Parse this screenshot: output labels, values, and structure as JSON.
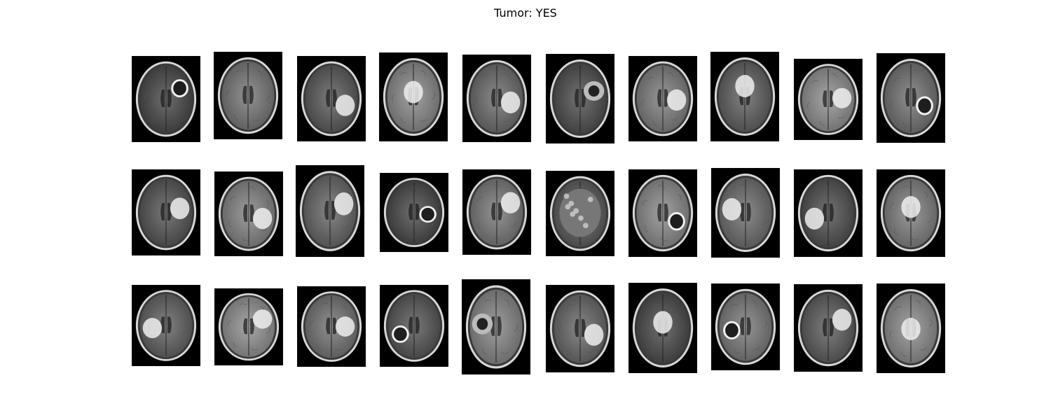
{
  "figure": {
    "title": "Tumor: YES"
  },
  "grid": {
    "rows": 3,
    "cols": 10
  },
  "images": [
    {
      "row": 0,
      "col": 0,
      "lesion": "ring-enhancing",
      "lesion_side": "right"
    },
    {
      "row": 0,
      "col": 1,
      "lesion": "none"
    },
    {
      "row": 0,
      "col": 2,
      "lesion": "bright-mass",
      "lesion_side": "right"
    },
    {
      "row": 0,
      "col": 3,
      "lesion": "bright-mass",
      "lesion_side": "center"
    },
    {
      "row": 0,
      "col": 4,
      "lesion": "bright-mass",
      "lesion_side": "right"
    },
    {
      "row": 0,
      "col": 5,
      "lesion": "cystic",
      "lesion_side": "right"
    },
    {
      "row": 0,
      "col": 6,
      "lesion": "bright-mass",
      "lesion_side": "right"
    },
    {
      "row": 0,
      "col": 7,
      "lesion": "bright-mass",
      "lesion_side": "center"
    },
    {
      "row": 0,
      "col": 8,
      "lesion": "bright-mass",
      "lesion_side": "right"
    },
    {
      "row": 0,
      "col": 9,
      "lesion": "ring-enhancing",
      "lesion_side": "right"
    },
    {
      "row": 1,
      "col": 0,
      "lesion": "bright-mass",
      "lesion_side": "right"
    },
    {
      "row": 1,
      "col": 1,
      "lesion": "bright-mass",
      "lesion_side": "right"
    },
    {
      "row": 1,
      "col": 2,
      "lesion": "bright-mass",
      "lesion_side": "right"
    },
    {
      "row": 1,
      "col": 3,
      "lesion": "ring-enhancing",
      "lesion_side": "right"
    },
    {
      "row": 1,
      "col": 4,
      "lesion": "bright-mass",
      "lesion_side": "right"
    },
    {
      "row": 1,
      "col": 5,
      "lesion": "heterogeneous",
      "lesion_side": "center"
    },
    {
      "row": 1,
      "col": 6,
      "lesion": "ring-enhancing",
      "lesion_side": "right"
    },
    {
      "row": 1,
      "col": 7,
      "lesion": "bright-mass",
      "lesion_side": "left"
    },
    {
      "row": 1,
      "col": 8,
      "lesion": "bright-mass",
      "lesion_side": "left"
    },
    {
      "row": 1,
      "col": 9,
      "lesion": "bright-mass",
      "lesion_side": "center"
    },
    {
      "row": 2,
      "col": 0,
      "lesion": "bright-mass",
      "lesion_side": "left"
    },
    {
      "row": 2,
      "col": 1,
      "lesion": "bright-mass",
      "lesion_side": "right"
    },
    {
      "row": 2,
      "col": 2,
      "lesion": "bright-mass",
      "lesion_side": "right"
    },
    {
      "row": 2,
      "col": 3,
      "lesion": "ring-enhancing",
      "lesion_side": "left"
    },
    {
      "row": 2,
      "col": 4,
      "lesion": "cystic",
      "lesion_side": "left"
    },
    {
      "row": 2,
      "col": 5,
      "lesion": "bright-mass",
      "lesion_side": "right"
    },
    {
      "row": 2,
      "col": 6,
      "lesion": "bright-mass",
      "lesion_side": "center"
    },
    {
      "row": 2,
      "col": 7,
      "lesion": "ring-enhancing",
      "lesion_side": "left"
    },
    {
      "row": 2,
      "col": 8,
      "lesion": "bright-mass",
      "lesion_side": "right"
    },
    {
      "row": 2,
      "col": 9,
      "lesion": "bright-mass",
      "lesion_side": "center"
    }
  ]
}
